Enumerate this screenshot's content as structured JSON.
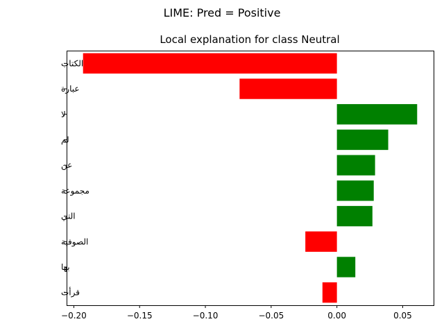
{
  "figure": {
    "suptitle": "LIME: Pred = Positive"
  },
  "chart_data": {
    "type": "bar",
    "orientation": "horizontal",
    "title": "Local explanation for class Neutral",
    "xlabel": "",
    "ylabel": "",
    "categories": [
      "الكتاب",
      "عبارة",
      "لا",
      "لم",
      "عن",
      "مجموعة",
      "التي",
      "الصوفية",
      "بها",
      "قرأت"
    ],
    "values": [
      -0.193,
      -0.074,
      0.061,
      0.039,
      0.029,
      0.028,
      0.027,
      -0.024,
      0.014,
      -0.011
    ],
    "xlim": [
      -0.2055,
      0.0735
    ],
    "xticks": [
      -0.2,
      -0.15,
      -0.1,
      -0.05,
      0.0,
      0.05
    ],
    "xtick_labels": [
      "−0.20",
      "−0.15",
      "−0.10",
      "−0.05",
      "0.00",
      "0.05"
    ],
    "grid": false,
    "colors": {
      "positive": "#008000",
      "negative": "#ff0000"
    }
  }
}
